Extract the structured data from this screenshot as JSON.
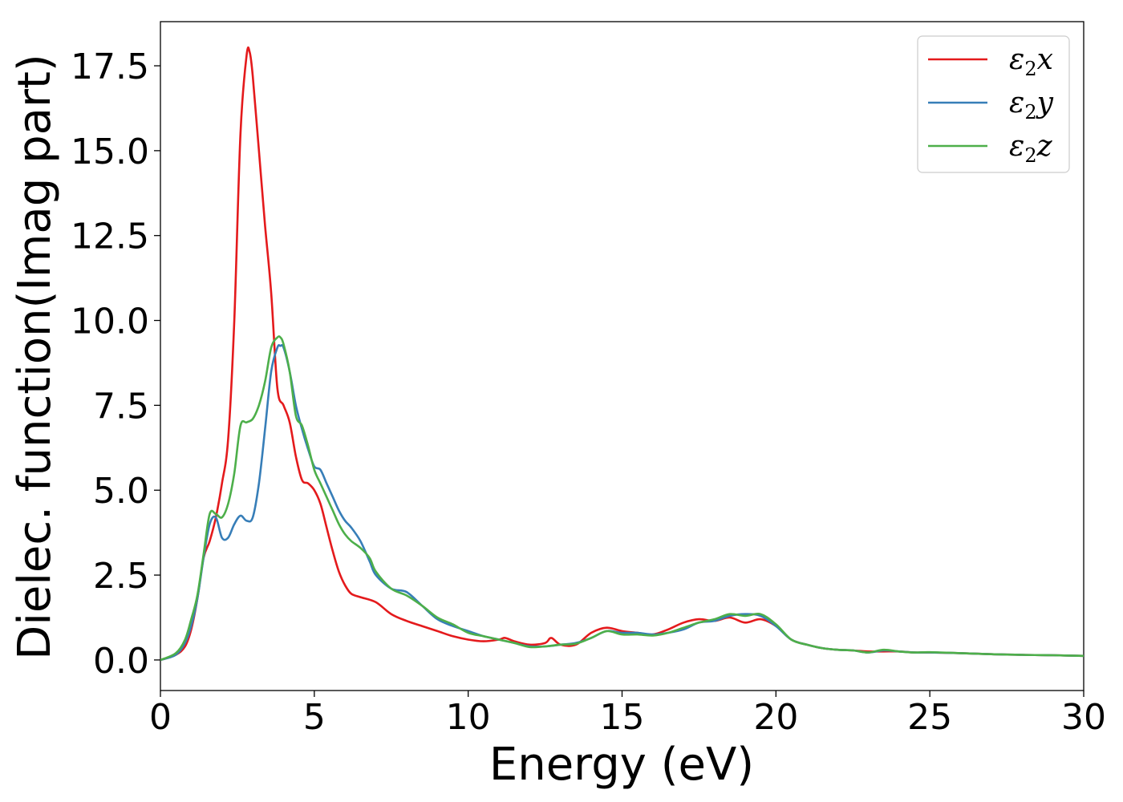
{
  "chart_data": {
    "type": "line",
    "title": "",
    "xlabel": "Energy (eV)",
    "ylabel": "Dielec. function(Imag part)",
    "xlim": [
      0,
      30
    ],
    "ylim": [
      -0.9,
      18.8
    ],
    "xticks": [
      0,
      5,
      10,
      15,
      20,
      25,
      30
    ],
    "xtick_labels": [
      "0",
      "5",
      "10",
      "15",
      "20",
      "25",
      "30"
    ],
    "yticks": [
      0.0,
      2.5,
      5.0,
      7.5,
      10.0,
      12.5,
      15.0,
      17.5
    ],
    "ytick_labels": [
      "0.0",
      "2.5",
      "5.0",
      "7.5",
      "10.0",
      "12.5",
      "15.0",
      "17.5"
    ],
    "grid": false,
    "legend_position": "top-right",
    "series": [
      {
        "name": "ε₂x",
        "legend_base": "ε",
        "legend_sub": "2",
        "legend_var": "x",
        "color": "#e41a1c",
        "x": [
          0,
          0.5,
          0.8,
          1.0,
          1.2,
          1.4,
          1.6,
          1.8,
          2.0,
          2.2,
          2.4,
          2.6,
          2.8,
          2.9,
          3.0,
          3.2,
          3.4,
          3.6,
          3.8,
          4.0,
          4.2,
          4.4,
          4.6,
          4.8,
          5.0,
          5.2,
          5.4,
          5.6,
          5.8,
          6.0,
          6.2,
          6.5,
          7.0,
          7.5,
          8.0,
          8.5,
          9.0,
          9.5,
          10.0,
          10.5,
          11.0,
          11.2,
          11.5,
          12.0,
          12.5,
          12.7,
          13.0,
          13.5,
          14.0,
          14.5,
          15.0,
          15.5,
          16.0,
          16.5,
          17.0,
          17.5,
          18.0,
          18.5,
          19.0,
          19.5,
          20.0,
          20.5,
          21.0,
          21.5,
          22.0,
          22.5,
          23.0,
          23.5,
          24.0,
          24.5,
          25.0,
          26.0,
          27.0,
          28.0,
          29.0,
          30.0
        ],
        "y": [
          0.0,
          0.15,
          0.4,
          0.9,
          1.8,
          3.0,
          3.5,
          4.2,
          5.2,
          6.5,
          10.0,
          15.5,
          17.8,
          17.9,
          17.2,
          15.0,
          12.8,
          10.8,
          8.0,
          7.5,
          7.0,
          6.0,
          5.3,
          5.2,
          5.0,
          4.6,
          3.9,
          3.2,
          2.6,
          2.2,
          1.95,
          1.85,
          1.7,
          1.35,
          1.15,
          1.0,
          0.85,
          0.7,
          0.6,
          0.55,
          0.6,
          0.65,
          0.55,
          0.45,
          0.5,
          0.65,
          0.45,
          0.45,
          0.8,
          0.95,
          0.85,
          0.8,
          0.75,
          0.9,
          1.1,
          1.2,
          1.15,
          1.25,
          1.1,
          1.2,
          1.0,
          0.6,
          0.45,
          0.35,
          0.3,
          0.28,
          0.25,
          0.25,
          0.25,
          0.22,
          0.22,
          0.2,
          0.17,
          0.15,
          0.14,
          0.12
        ]
      },
      {
        "name": "ε₂y",
        "legend_base": "ε",
        "legend_sub": "2",
        "legend_var": "y",
        "color": "#377eb8",
        "x": [
          0,
          0.5,
          0.8,
          1.0,
          1.2,
          1.4,
          1.6,
          1.8,
          2.0,
          2.2,
          2.4,
          2.6,
          2.8,
          3.0,
          3.2,
          3.4,
          3.6,
          3.8,
          3.9,
          4.0,
          4.2,
          4.4,
          4.6,
          4.8,
          5.0,
          5.2,
          5.4,
          5.6,
          5.8,
          6.0,
          6.2,
          6.5,
          6.8,
          7.0,
          7.5,
          8.0,
          8.5,
          9.0,
          9.5,
          10.0,
          10.5,
          11.0,
          11.5,
          12.0,
          12.5,
          13.0,
          13.5,
          14.0,
          14.5,
          15.0,
          15.5,
          16.0,
          16.5,
          17.0,
          17.5,
          18.0,
          18.5,
          19.0,
          19.5,
          20.0,
          20.5,
          21.0,
          21.5,
          22.0,
          22.5,
          23.0,
          23.5,
          24.0,
          24.5,
          25.0,
          26.0,
          27.0,
          28.0,
          29.0,
          30.0
        ],
        "y": [
          0.0,
          0.15,
          0.5,
          1.0,
          1.8,
          3.0,
          4.0,
          4.2,
          3.6,
          3.6,
          4.0,
          4.25,
          4.1,
          4.2,
          5.2,
          6.8,
          8.5,
          9.2,
          9.25,
          9.2,
          8.5,
          7.5,
          6.8,
          6.2,
          5.7,
          5.6,
          5.2,
          4.8,
          4.4,
          4.1,
          3.9,
          3.5,
          2.9,
          2.5,
          2.1,
          2.0,
          1.6,
          1.2,
          1.0,
          0.85,
          0.7,
          0.6,
          0.5,
          0.4,
          0.4,
          0.45,
          0.5,
          0.65,
          0.85,
          0.8,
          0.8,
          0.75,
          0.8,
          0.9,
          1.1,
          1.15,
          1.3,
          1.35,
          1.3,
          1.0,
          0.6,
          0.45,
          0.35,
          0.3,
          0.28,
          0.22,
          0.28,
          0.25,
          0.22,
          0.22,
          0.2,
          0.17,
          0.15,
          0.14,
          0.12
        ]
      },
      {
        "name": "ε₂z",
        "legend_base": "ε",
        "legend_sub": "2",
        "legend_var": "z",
        "color": "#4daf4a",
        "x": [
          0,
          0.5,
          0.8,
          1.0,
          1.2,
          1.4,
          1.6,
          1.8,
          2.0,
          2.2,
          2.4,
          2.6,
          2.8,
          3.0,
          3.2,
          3.4,
          3.6,
          3.8,
          3.9,
          4.0,
          4.2,
          4.4,
          4.6,
          4.8,
          5.0,
          5.2,
          5.4,
          5.6,
          5.8,
          6.0,
          6.2,
          6.5,
          6.8,
          7.0,
          7.5,
          8.0,
          8.5,
          9.0,
          9.5,
          10.0,
          10.5,
          11.0,
          11.5,
          12.0,
          12.5,
          13.0,
          13.5,
          14.0,
          14.5,
          15.0,
          15.5,
          16.0,
          16.5,
          17.0,
          17.5,
          18.0,
          18.5,
          19.0,
          19.5,
          20.0,
          20.5,
          21.0,
          21.5,
          22.0,
          22.5,
          23.0,
          23.5,
          24.0,
          24.5,
          25.0,
          26.0,
          27.0,
          28.0,
          29.0,
          30.0
        ],
        "y": [
          0.0,
          0.2,
          0.6,
          1.2,
          1.9,
          3.1,
          4.3,
          4.3,
          4.2,
          4.6,
          5.5,
          6.9,
          7.0,
          7.1,
          7.5,
          8.2,
          9.2,
          9.5,
          9.5,
          9.3,
          8.5,
          7.2,
          6.9,
          6.3,
          5.6,
          5.2,
          4.8,
          4.4,
          4.0,
          3.7,
          3.5,
          3.3,
          3.0,
          2.6,
          2.1,
          1.9,
          1.6,
          1.25,
          1.05,
          0.8,
          0.7,
          0.6,
          0.5,
          0.38,
          0.4,
          0.45,
          0.48,
          0.65,
          0.85,
          0.75,
          0.75,
          0.72,
          0.8,
          0.95,
          1.1,
          1.2,
          1.35,
          1.3,
          1.35,
          1.05,
          0.6,
          0.45,
          0.35,
          0.3,
          0.28,
          0.22,
          0.3,
          0.25,
          0.22,
          0.23,
          0.2,
          0.17,
          0.15,
          0.14,
          0.12
        ]
      }
    ]
  }
}
